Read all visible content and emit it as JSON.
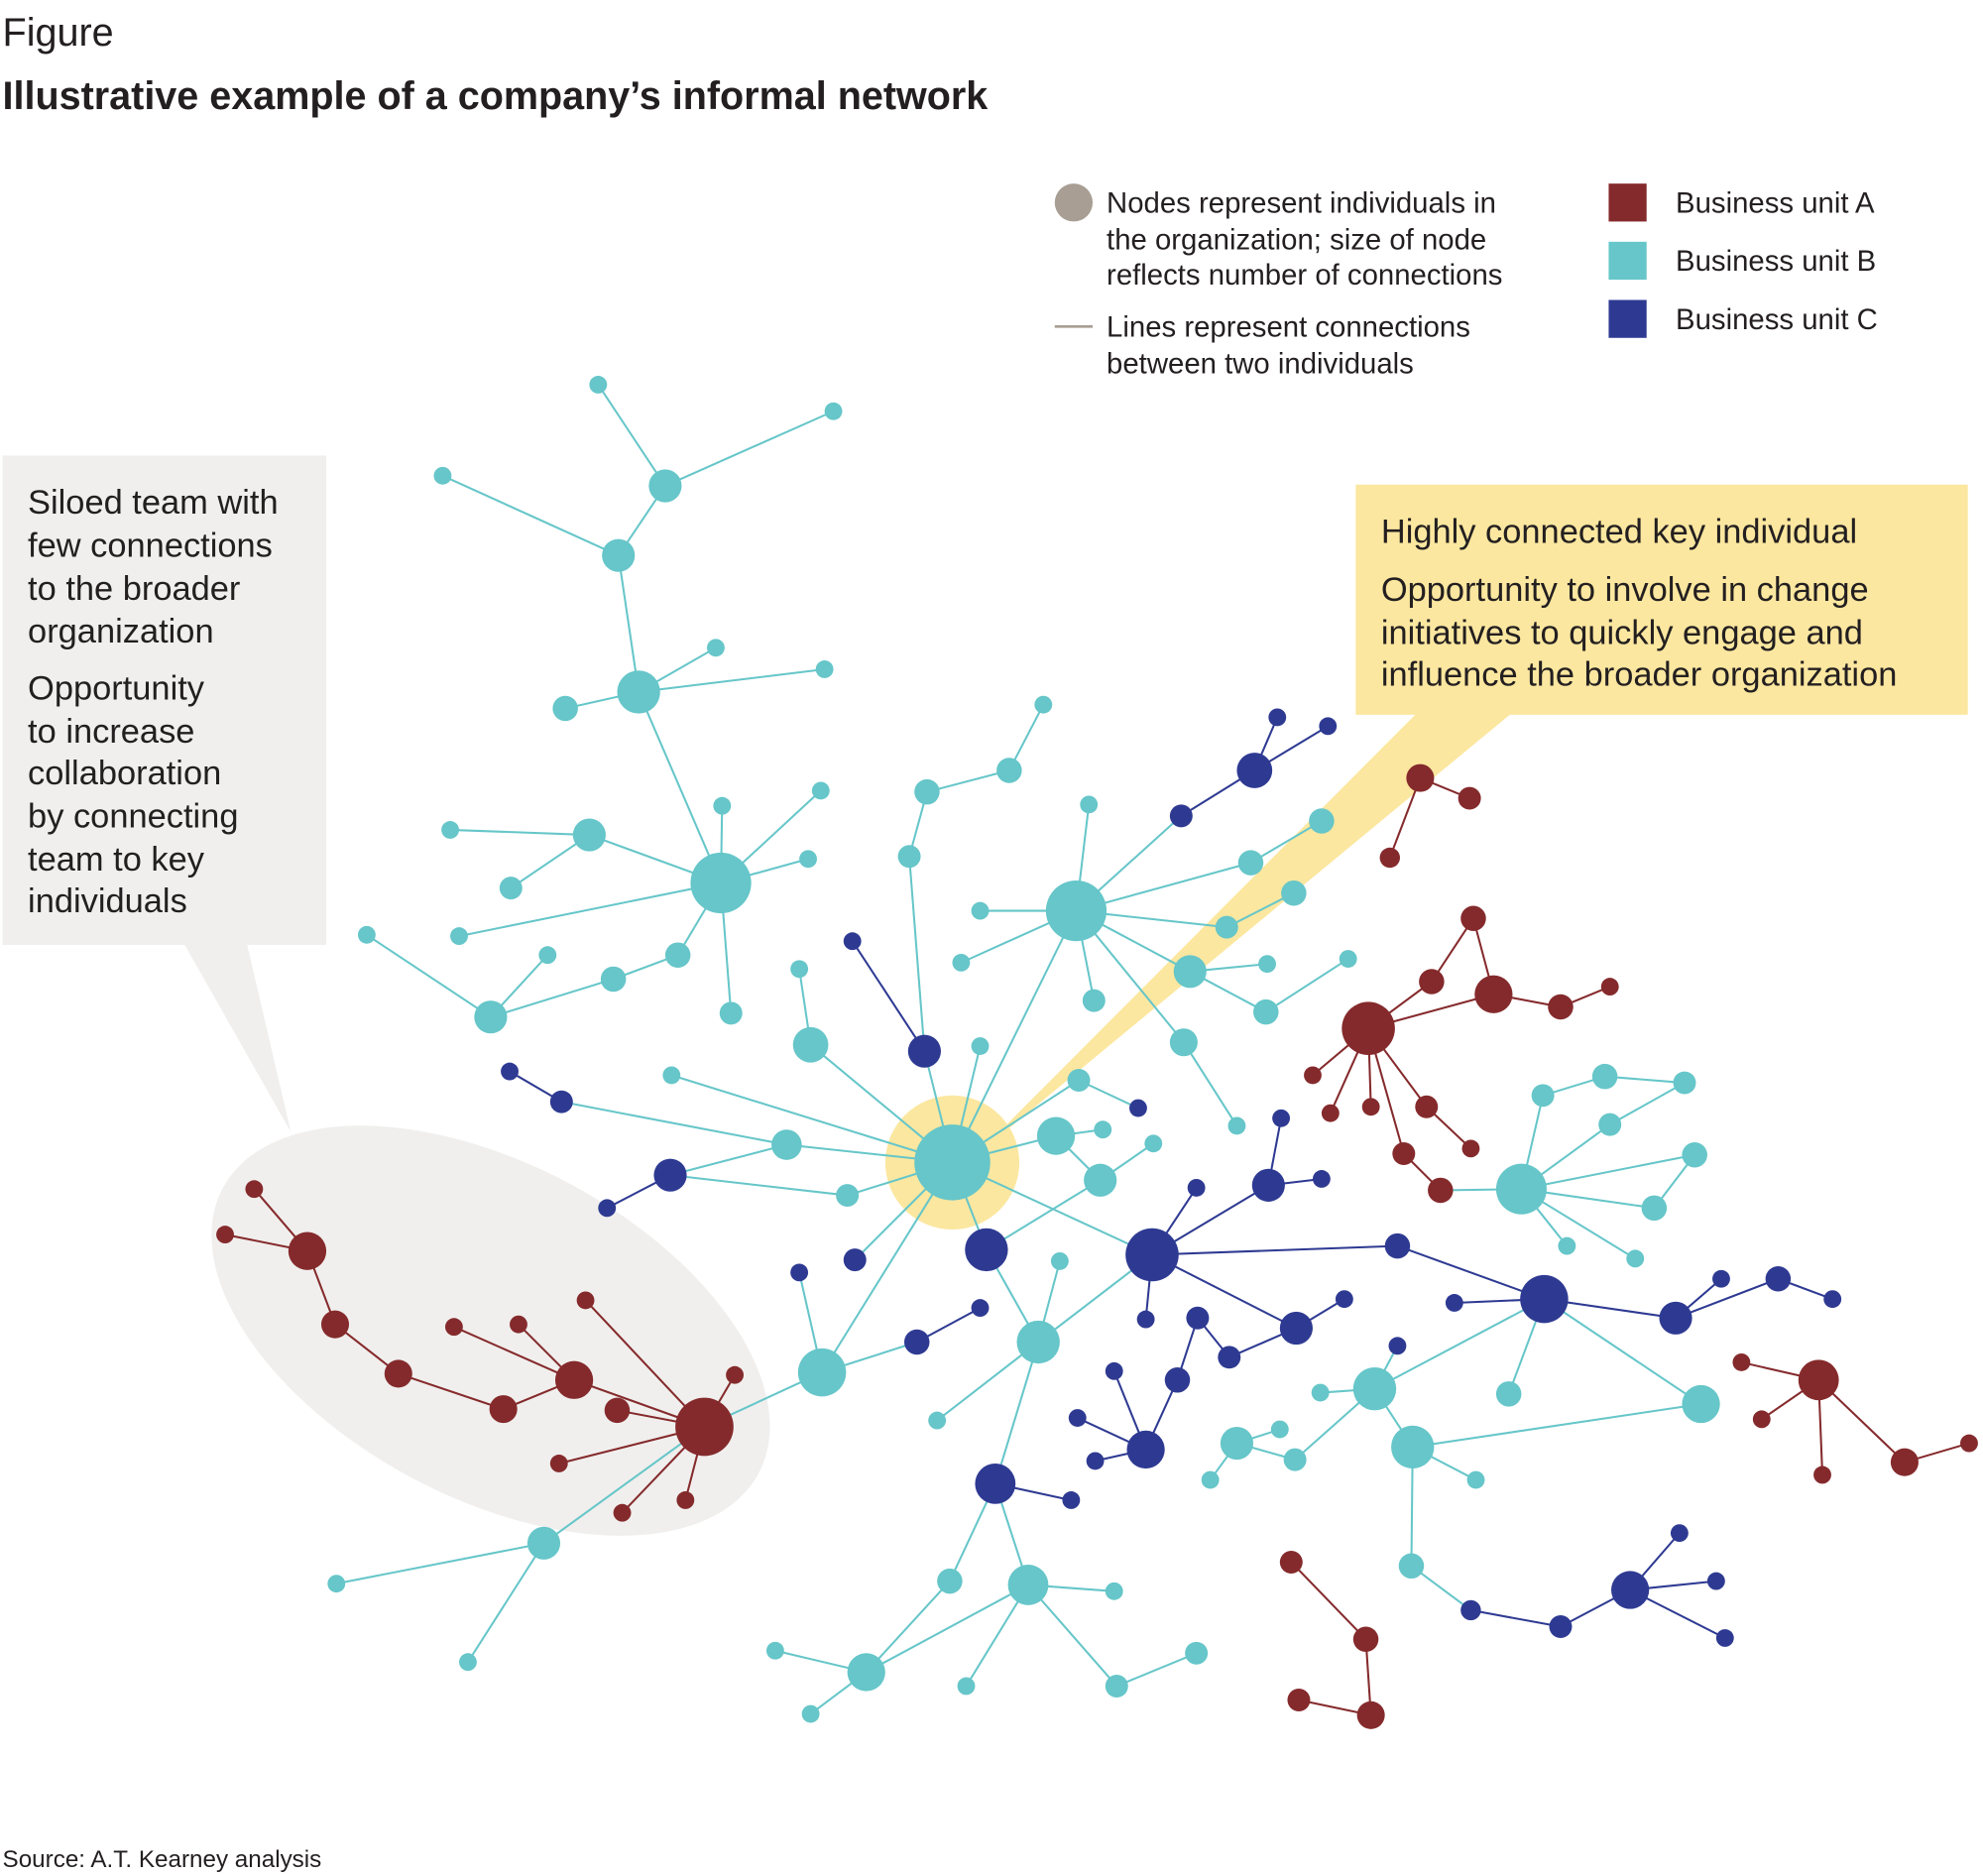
{
  "header": {
    "label": "Figure",
    "title": "Illustrative example of a company’s informal network"
  },
  "legend": {
    "nodes_text": [
      "Nodes represent individuals in",
      "the organization; size of node",
      "reflects number of connections"
    ],
    "lines_text": [
      "Lines represent connections",
      "between two individuals"
    ],
    "units": [
      {
        "label": "Business unit A",
        "color": "#852a2c"
      },
      {
        "label": "Business unit B",
        "color": "#66c6c9"
      },
      {
        "label": "Business unit C",
        "color": "#2e3a92"
      }
    ],
    "node_swatch_color": "#a89e93",
    "line_swatch_color": "#a89e93"
  },
  "callouts": {
    "siloed": {
      "lines": [
        "Siloed team with",
        "few connections",
        "to the broader",
        "organization"
      ],
      "opportunity": [
        "Opportunity",
        "to increase",
        "collaboration",
        "by connecting",
        "team to key",
        "individuals"
      ],
      "color": "#f0efed"
    },
    "key_individual": {
      "heading": "Highly connected key individual",
      "opportunity": [
        "Opportunity to involve in change",
        "initiatives to quickly engage and",
        "influence the broader organization"
      ],
      "color": "#fce7a0"
    }
  },
  "source": "Source: A.T. Kearney analysis"
}
